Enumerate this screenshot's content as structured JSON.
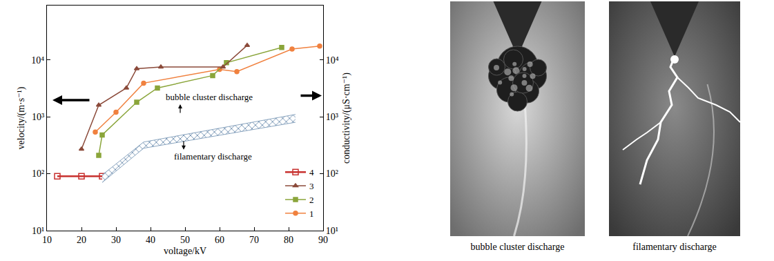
{
  "chart_data": {
    "type": "line",
    "x_label": "voltage/kV",
    "y_label": "velocity/(m·s⁻¹)",
    "y2_label": "conductivity/(μS·cm⁻¹)",
    "log": "y",
    "grid": false,
    "legend": "lower right",
    "xlim": [
      10,
      90
    ],
    "xticks": [
      10,
      20,
      30,
      40,
      50,
      60,
      70,
      80,
      90
    ],
    "ylim": [
      10,
      90000
    ],
    "yticks": [
      {
        "value": 10,
        "label": "10¹"
      },
      {
        "value": 100,
        "label": "10²"
      },
      {
        "value": 1000,
        "label": "10³"
      },
      {
        "value": 10000,
        "label": "10⁴"
      }
    ],
    "y2lim": [
      10,
      90000
    ],
    "y2ticks": [
      {
        "value": 10,
        "label": "10¹"
      },
      {
        "value": 100,
        "label": "10²"
      },
      {
        "value": 1000,
        "label": "10³"
      },
      {
        "value": 10000,
        "label": "10⁴"
      }
    ],
    "series": [
      {
        "name": "1",
        "color": "#f0813f",
        "marker": "circle",
        "x": [
          24,
          30,
          38,
          60,
          65,
          81,
          89
        ],
        "values": [
          540,
          1200,
          3900,
          6800,
          6200,
          15500,
          17500
        ]
      },
      {
        "name": "2",
        "color": "#8aa53a",
        "marker": "square",
        "x": [
          25,
          26,
          36,
          42,
          58,
          62,
          78
        ],
        "values": [
          210,
          480,
          1800,
          3200,
          5300,
          8900,
          16500
        ]
      },
      {
        "name": "3",
        "color": "#8b4a3a",
        "marker": "triangle-up",
        "x": [
          20,
          25,
          33,
          36,
          43,
          61,
          68
        ],
        "values": [
          270,
          1600,
          3200,
          7000,
          7500,
          7500,
          18000
        ]
      },
      {
        "name": "4",
        "color": "#c8312f",
        "marker": "square-open",
        "x": [
          13,
          20,
          26
        ],
        "values": [
          90,
          90,
          90
        ]
      }
    ],
    "band": {
      "axis": "y2",
      "color": "#6f8fb0",
      "x": [
        26,
        38,
        82
      ],
      "lower": [
        70,
        280,
        800
      ],
      "upper": [
        95,
        360,
        1100
      ]
    },
    "annotations": [
      {
        "text": "bubble cluster discharge",
        "x": 57,
        "y": 2200
      },
      {
        "text": "filamentary discharge",
        "x": 58,
        "y": 200
      }
    ]
  },
  "panels": [
    {
      "kind": "bubble",
      "caption": "bubble cluster discharge"
    },
    {
      "kind": "filament",
      "caption": "filamentary discharge"
    }
  ]
}
